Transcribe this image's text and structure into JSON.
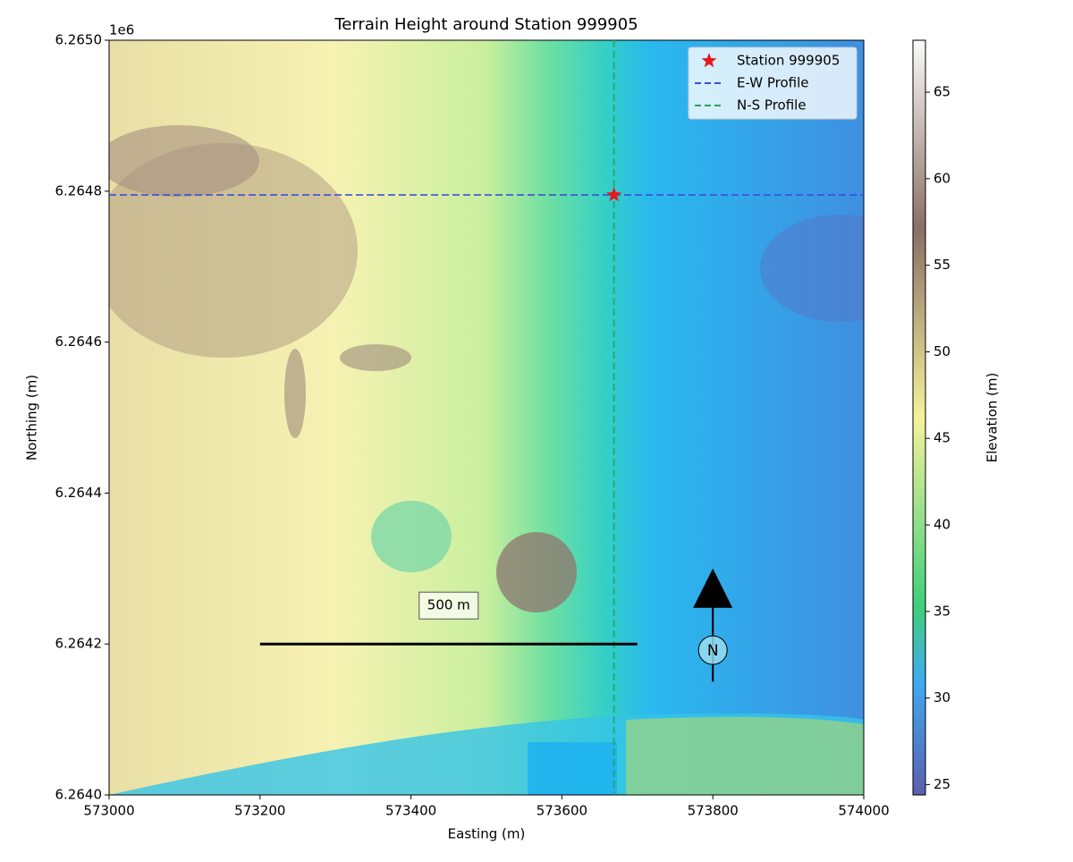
{
  "chart_data": {
    "type": "map",
    "title": "Terrain Height around Station 999905",
    "xlabel": "Easting (m)",
    "ylabel": "Northing (m)",
    "y_offset_label": "1e6",
    "xlim": [
      573000,
      574000
    ],
    "ylim": [
      6264000,
      6265000
    ],
    "xticks": [
      573000,
      573200,
      573400,
      573600,
      573800,
      574000
    ],
    "yticks": [
      {
        "value": 6264000,
        "label": "6.2640"
      },
      {
        "value": 6264200,
        "label": "6.2642"
      },
      {
        "value": 6264400,
        "label": "6.2644"
      },
      {
        "value": 6264600,
        "label": "6.2646"
      },
      {
        "value": 6264800,
        "label": "6.2648"
      },
      {
        "value": 6265000,
        "label": "6.2650"
      }
    ],
    "station": {
      "name": "Station 999905",
      "color": "#e41a1c",
      "x": 573669,
      "y": 6264795
    },
    "profiles": [
      {
        "name": "E-W Profile",
        "color": "#3a4fd8",
        "y": 6264795
      },
      {
        "name": "N-S Profile",
        "color": "#2ca05a",
        "x": 573669
      }
    ],
    "legend": "upper right",
    "scale_bar": {
      "label": "500 m",
      "x": [
        573200,
        573700
      ],
      "y": 6264200
    },
    "north_arrow": {
      "label": "N",
      "x": 573800,
      "y": [
        6264150,
        6264300
      ]
    },
    "colorbar": {
      "label": "Elevation (m)",
      "colormap": "terrain",
      "lim": [
        24.4,
        68
      ],
      "ticks": [
        25,
        30,
        35,
        40,
        45,
        50,
        55,
        60,
        65
      ]
    }
  }
}
